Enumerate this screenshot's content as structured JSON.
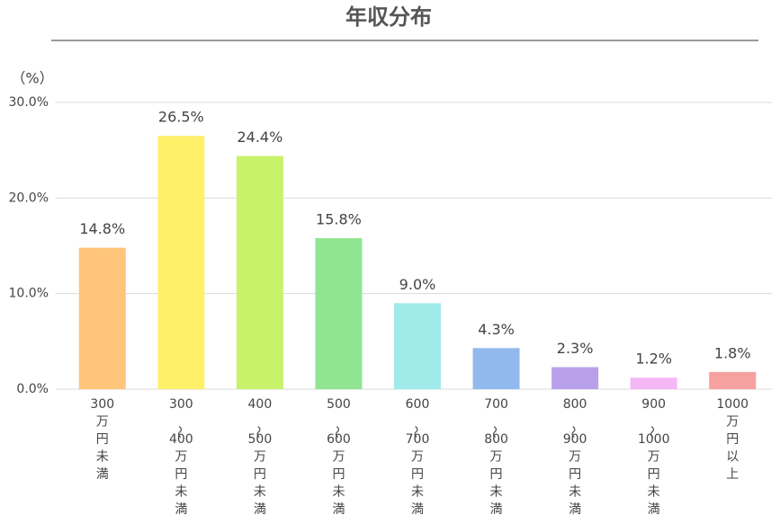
{
  "chart_data": {
    "type": "bar",
    "title": "年収分布",
    "y_label": "（%）",
    "categories": [
      "300万円未満",
      "300～400万円未満",
      "400～500万円未満",
      "500～600万円未満",
      "600～700万円未満",
      "700～800万円未満",
      "800～900万円未満",
      "900～1000万円未満",
      "1000万円以上"
    ],
    "values": [
      14.8,
      26.5,
      24.4,
      15.8,
      9.0,
      4.3,
      2.3,
      1.2,
      1.8
    ],
    "value_labels": [
      "14.8%",
      "26.5%",
      "24.4%",
      "15.8%",
      "9.0%",
      "4.3%",
      "2.3%",
      "1.2%",
      "1.8%"
    ],
    "colors": [
      "#ffc57a",
      "#fff06a",
      "#c8f26a",
      "#90e690",
      "#a0eaea",
      "#91b9ee",
      "#b9a0ea",
      "#f4b7f4",
      "#f7a0a0"
    ],
    "ylim": [
      0,
      30
    ],
    "yticks": [
      {
        "value": 0,
        "label": "0.0%"
      },
      {
        "value": 10,
        "label": "10.0%"
      },
      {
        "value": 20,
        "label": "20.0%"
      },
      {
        "value": 30,
        "label": "30.0%"
      }
    ],
    "grid": true
  }
}
